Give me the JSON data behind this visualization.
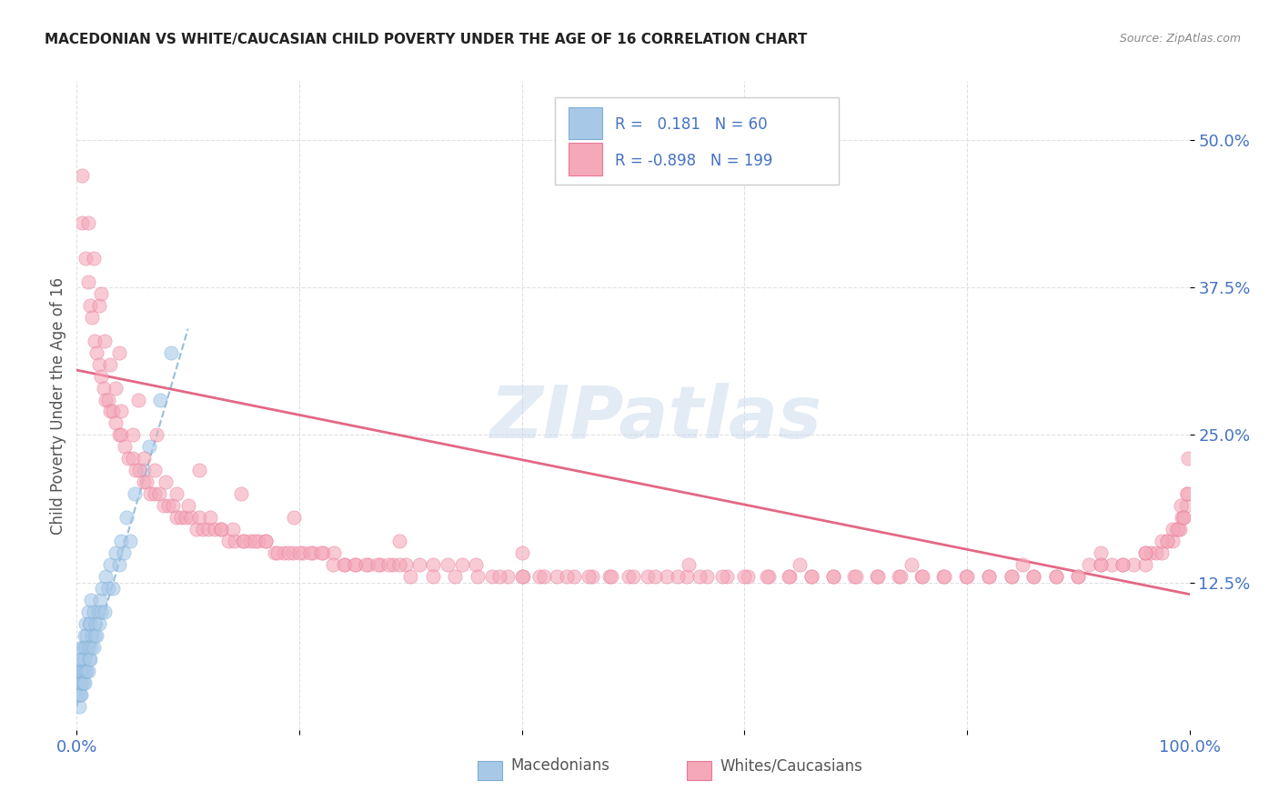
{
  "title": "MACEDONIAN VS WHITE/CAUCASIAN CHILD POVERTY UNDER THE AGE OF 16 CORRELATION CHART",
  "source": "Source: ZipAtlas.com",
  "ylabel": "Child Poverty Under the Age of 16",
  "blue_R": "0.181",
  "blue_N": "60",
  "pink_R": "-0.898",
  "pink_N": "199",
  "blue_color": "#a8c8e8",
  "blue_edge_color": "#7bafd4",
  "blue_line_color": "#7bafd4",
  "pink_color": "#f4a8b8",
  "pink_edge_color": "#e87898",
  "pink_line_color": "#e05878",
  "watermark": "ZIPatlas",
  "watermark_color": "#c8d8ec",
  "background_color": "#ffffff",
  "grid_color": "#e0e0e0",
  "title_color": "#222222",
  "axis_label_color": "#4472c4",
  "legend_text_color": "#4472c4",
  "xlim": [
    0.0,
    1.0
  ],
  "ylim": [
    0.0,
    0.55
  ],
  "yticks": [
    0.125,
    0.25,
    0.375,
    0.5
  ],
  "blue_scatter_x": [
    0.002,
    0.002,
    0.003,
    0.003,
    0.003,
    0.004,
    0.004,
    0.004,
    0.004,
    0.005,
    0.005,
    0.005,
    0.005,
    0.006,
    0.006,
    0.006,
    0.007,
    0.007,
    0.007,
    0.008,
    0.008,
    0.008,
    0.009,
    0.009,
    0.01,
    0.01,
    0.01,
    0.011,
    0.011,
    0.012,
    0.012,
    0.013,
    0.013,
    0.014,
    0.015,
    0.015,
    0.016,
    0.017,
    0.018,
    0.019,
    0.02,
    0.021,
    0.022,
    0.023,
    0.025,
    0.026,
    0.028,
    0.03,
    0.032,
    0.035,
    0.038,
    0.04,
    0.042,
    0.045,
    0.048,
    0.052,
    0.06,
    0.065,
    0.075,
    0.085
  ],
  "blue_scatter_y": [
    0.02,
    0.03,
    0.03,
    0.04,
    0.05,
    0.03,
    0.04,
    0.05,
    0.06,
    0.04,
    0.05,
    0.06,
    0.07,
    0.04,
    0.05,
    0.07,
    0.04,
    0.06,
    0.08,
    0.05,
    0.07,
    0.09,
    0.05,
    0.08,
    0.05,
    0.07,
    0.1,
    0.06,
    0.09,
    0.06,
    0.09,
    0.07,
    0.11,
    0.08,
    0.07,
    0.1,
    0.08,
    0.09,
    0.08,
    0.1,
    0.09,
    0.11,
    0.1,
    0.12,
    0.1,
    0.13,
    0.12,
    0.14,
    0.12,
    0.15,
    0.14,
    0.16,
    0.15,
    0.18,
    0.16,
    0.2,
    0.22,
    0.24,
    0.28,
    0.32
  ],
  "pink_scatter_x": [
    0.005,
    0.008,
    0.01,
    0.012,
    0.014,
    0.016,
    0.018,
    0.02,
    0.022,
    0.024,
    0.026,
    0.028,
    0.03,
    0.032,
    0.035,
    0.038,
    0.04,
    0.043,
    0.046,
    0.05,
    0.053,
    0.056,
    0.06,
    0.063,
    0.066,
    0.07,
    0.074,
    0.078,
    0.082,
    0.086,
    0.09,
    0.094,
    0.098,
    0.103,
    0.108,
    0.113,
    0.118,
    0.124,
    0.13,
    0.136,
    0.142,
    0.149,
    0.156,
    0.163,
    0.17,
    0.178,
    0.186,
    0.194,
    0.203,
    0.212,
    0.221,
    0.231,
    0.241,
    0.251,
    0.262,
    0.273,
    0.284,
    0.296,
    0.308,
    0.32,
    0.333,
    0.346,
    0.359,
    0.373,
    0.387,
    0.401,
    0.416,
    0.431,
    0.447,
    0.463,
    0.479,
    0.496,
    0.513,
    0.53,
    0.548,
    0.566,
    0.584,
    0.603,
    0.622,
    0.641,
    0.66,
    0.68,
    0.699,
    0.719,
    0.739,
    0.759,
    0.779,
    0.799,
    0.82,
    0.84,
    0.86,
    0.88,
    0.9,
    0.91,
    0.92,
    0.93,
    0.94,
    0.95,
    0.96,
    0.965,
    0.97,
    0.975,
    0.98,
    0.985,
    0.988,
    0.991,
    0.993,
    0.995,
    0.997,
    0.998,
    0.005,
    0.01,
    0.015,
    0.02,
    0.025,
    0.03,
    0.035,
    0.04,
    0.05,
    0.06,
    0.07,
    0.08,
    0.09,
    0.1,
    0.11,
    0.12,
    0.13,
    0.14,
    0.15,
    0.16,
    0.17,
    0.18,
    0.19,
    0.2,
    0.21,
    0.22,
    0.23,
    0.24,
    0.25,
    0.26,
    0.27,
    0.28,
    0.29,
    0.3,
    0.32,
    0.34,
    0.36,
    0.38,
    0.4,
    0.42,
    0.44,
    0.46,
    0.48,
    0.5,
    0.52,
    0.54,
    0.56,
    0.58,
    0.6,
    0.62,
    0.64,
    0.66,
    0.68,
    0.7,
    0.72,
    0.74,
    0.76,
    0.78,
    0.8,
    0.82,
    0.84,
    0.86,
    0.88,
    0.9,
    0.92,
    0.94,
    0.96,
    0.975,
    0.985,
    0.992,
    0.022,
    0.038,
    0.055,
    0.072,
    0.11,
    0.148,
    0.195,
    0.29,
    0.4,
    0.55,
    0.65,
    0.75,
    0.85,
    0.92,
    0.96,
    0.98,
    0.99,
    0.995,
    0.998,
    0.999
  ],
  "pink_scatter_y": [
    0.43,
    0.4,
    0.38,
    0.36,
    0.35,
    0.33,
    0.32,
    0.31,
    0.3,
    0.29,
    0.28,
    0.28,
    0.27,
    0.27,
    0.26,
    0.25,
    0.25,
    0.24,
    0.23,
    0.23,
    0.22,
    0.22,
    0.21,
    0.21,
    0.2,
    0.2,
    0.2,
    0.19,
    0.19,
    0.19,
    0.18,
    0.18,
    0.18,
    0.18,
    0.17,
    0.17,
    0.17,
    0.17,
    0.17,
    0.16,
    0.16,
    0.16,
    0.16,
    0.16,
    0.16,
    0.15,
    0.15,
    0.15,
    0.15,
    0.15,
    0.15,
    0.15,
    0.14,
    0.14,
    0.14,
    0.14,
    0.14,
    0.14,
    0.14,
    0.14,
    0.14,
    0.14,
    0.14,
    0.13,
    0.13,
    0.13,
    0.13,
    0.13,
    0.13,
    0.13,
    0.13,
    0.13,
    0.13,
    0.13,
    0.13,
    0.13,
    0.13,
    0.13,
    0.13,
    0.13,
    0.13,
    0.13,
    0.13,
    0.13,
    0.13,
    0.13,
    0.13,
    0.13,
    0.13,
    0.13,
    0.13,
    0.13,
    0.13,
    0.14,
    0.14,
    0.14,
    0.14,
    0.14,
    0.14,
    0.15,
    0.15,
    0.15,
    0.16,
    0.16,
    0.17,
    0.17,
    0.18,
    0.18,
    0.19,
    0.2,
    0.47,
    0.43,
    0.4,
    0.36,
    0.33,
    0.31,
    0.29,
    0.27,
    0.25,
    0.23,
    0.22,
    0.21,
    0.2,
    0.19,
    0.18,
    0.18,
    0.17,
    0.17,
    0.16,
    0.16,
    0.16,
    0.15,
    0.15,
    0.15,
    0.15,
    0.15,
    0.14,
    0.14,
    0.14,
    0.14,
    0.14,
    0.14,
    0.14,
    0.13,
    0.13,
    0.13,
    0.13,
    0.13,
    0.13,
    0.13,
    0.13,
    0.13,
    0.13,
    0.13,
    0.13,
    0.13,
    0.13,
    0.13,
    0.13,
    0.13,
    0.13,
    0.13,
    0.13,
    0.13,
    0.13,
    0.13,
    0.13,
    0.13,
    0.13,
    0.13,
    0.13,
    0.13,
    0.13,
    0.13,
    0.14,
    0.14,
    0.15,
    0.16,
    0.17,
    0.19,
    0.37,
    0.32,
    0.28,
    0.25,
    0.22,
    0.2,
    0.18,
    0.16,
    0.15,
    0.14,
    0.14,
    0.14,
    0.14,
    0.15,
    0.15,
    0.16,
    0.17,
    0.18,
    0.2,
    0.23
  ],
  "blue_line_x0": 0.0,
  "blue_line_x1": 0.1,
  "blue_line_y0": 0.02,
  "blue_line_y1": 0.34,
  "pink_line_x0": 0.0,
  "pink_line_x1": 1.0,
  "pink_line_y0": 0.305,
  "pink_line_y1": 0.115
}
